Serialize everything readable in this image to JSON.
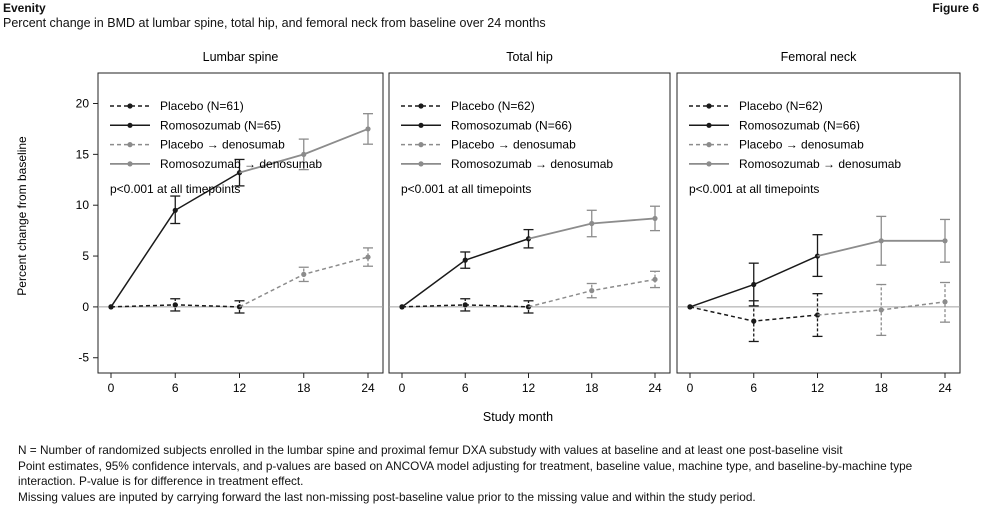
{
  "header": {
    "brand": "Evenity",
    "figure_label": "Figure 6",
    "subtitle": "Percent change in BMD at lumbar spine, total hip, and femoral neck from baseline over 24 months"
  },
  "axes": {
    "ylabel": "Percent change from baseline",
    "xlabel": "Study month"
  },
  "colors": {
    "black": "#1a1a1a",
    "gray": "#8c8c8c",
    "zero_line": "#a0a0a0"
  },
  "chart_data": [
    {
      "type": "line",
      "title": "Lumbar spine",
      "x": [
        0,
        6,
        12,
        18,
        24
      ],
      "xticks": [
        0,
        6,
        12,
        18,
        24
      ],
      "ylim": [
        -6.5,
        23
      ],
      "yticks": [
        -5,
        0,
        5,
        10,
        15,
        20
      ],
      "annotation": "p<0.001 at all timepoints",
      "legend": [
        "Placebo (N=61)",
        "Romosozumab (N=65)",
        "Placebo → denosumab",
        "Romosozumab → denosumab"
      ],
      "series": [
        {
          "name": "Placebo (N=61)",
          "style": "black-dashed",
          "points": [
            [
              0,
              0,
              0,
              0
            ],
            [
              6,
              0.2,
              -0.4,
              0.8
            ],
            [
              12,
              0,
              -0.6,
              0.6
            ]
          ]
        },
        {
          "name": "Romosozumab (N=65)",
          "style": "black-solid",
          "points": [
            [
              0,
              0,
              0,
              0
            ],
            [
              6,
              9.5,
              8.2,
              10.9
            ],
            [
              12,
              13.2,
              11.9,
              14.5
            ]
          ]
        },
        {
          "name": "Placebo → denosumab",
          "style": "gray-dashed",
          "points": [
            [
              12,
              0,
              0,
              0
            ],
            [
              18,
              3.2,
              2.5,
              3.9
            ],
            [
              24,
              4.9,
              4.0,
              5.8
            ]
          ]
        },
        {
          "name": "Romosozumab → denosumab",
          "style": "gray-solid",
          "points": [
            [
              12,
              13.2,
              13.2,
              13.2
            ],
            [
              18,
              15.0,
              13.5,
              16.5
            ],
            [
              24,
              17.5,
              16.0,
              19.0
            ]
          ]
        }
      ]
    },
    {
      "type": "line",
      "title": "Total hip",
      "x": [
        0,
        6,
        12,
        18,
        24
      ],
      "xticks": [
        0,
        6,
        12,
        18,
        24
      ],
      "ylim": [
        -6.5,
        23
      ],
      "yticks": [
        -5,
        0,
        5,
        10,
        15,
        20
      ],
      "annotation": "p<0.001 at all timepoints",
      "legend": [
        "Placebo (N=62)",
        "Romosozumab (N=66)",
        "Placebo → denosumab",
        "Romosozumab → denosumab"
      ],
      "series": [
        {
          "name": "Placebo (N=62)",
          "style": "black-dashed",
          "points": [
            [
              0,
              0,
              0,
              0
            ],
            [
              6,
              0.2,
              -0.4,
              0.8
            ],
            [
              12,
              0,
              -0.6,
              0.6
            ]
          ]
        },
        {
          "name": "Romosozumab (N=66)",
          "style": "black-solid",
          "points": [
            [
              0,
              0,
              0,
              0
            ],
            [
              6,
              4.6,
              3.8,
              5.4
            ],
            [
              12,
              6.7,
              5.8,
              7.6
            ]
          ]
        },
        {
          "name": "Placebo → denosumab",
          "style": "gray-dashed",
          "points": [
            [
              12,
              0,
              0,
              0
            ],
            [
              18,
              1.6,
              0.9,
              2.3
            ],
            [
              24,
              2.7,
              1.9,
              3.5
            ]
          ]
        },
        {
          "name": "Romosozumab → denosumab",
          "style": "gray-solid",
          "points": [
            [
              12,
              6.7,
              6.7,
              6.7
            ],
            [
              18,
              8.2,
              6.9,
              9.5
            ],
            [
              24,
              8.7,
              7.5,
              9.9
            ]
          ]
        }
      ]
    },
    {
      "type": "line",
      "title": "Femoral neck",
      "x": [
        0,
        6,
        12,
        18,
        24
      ],
      "xticks": [
        0,
        6,
        12,
        18,
        24
      ],
      "ylim": [
        -6.5,
        23
      ],
      "yticks": [
        -5,
        0,
        5,
        10,
        15,
        20
      ],
      "annotation": "p<0.001 at all timepoints",
      "legend": [
        "Placebo (N=62)",
        "Romosozumab (N=66)",
        "Placebo → denosumab",
        "Romosozumab → denosumab"
      ],
      "series": [
        {
          "name": "Placebo (N=62)",
          "style": "black-dashed",
          "points": [
            [
              0,
              0,
              0,
              0
            ],
            [
              6,
              -1.4,
              -3.4,
              0.6
            ],
            [
              12,
              -0.8,
              -2.9,
              1.3
            ]
          ]
        },
        {
          "name": "Romosozumab (N=66)",
          "style": "black-solid",
          "points": [
            [
              0,
              0,
              0,
              0
            ],
            [
              6,
              2.2,
              0.1,
              4.3
            ],
            [
              12,
              5.0,
              3.0,
              7.1
            ]
          ]
        },
        {
          "name": "Placebo → denosumab",
          "style": "gray-dashed",
          "points": [
            [
              12,
              -0.8,
              -0.8,
              -0.8
            ],
            [
              18,
              -0.3,
              -2.8,
              2.2
            ],
            [
              24,
              0.5,
              -1.5,
              2.4
            ]
          ]
        },
        {
          "name": "Romosozumab → denosumab",
          "style": "gray-solid",
          "points": [
            [
              12,
              5.0,
              5.0,
              5.0
            ],
            [
              18,
              6.5,
              4.1,
              8.9
            ],
            [
              24,
              6.5,
              4.4,
              8.6
            ]
          ]
        }
      ]
    }
  ],
  "footnotes": [
    "N = Number of randomized subjects enrolled in the lumbar spine and proximal femur DXA substudy with values at baseline and at least one post-baseline visit",
    "Point estimates, 95% confidence intervals, and p-values are based on ANCOVA model adjusting for treatment, baseline value, machine type, and baseline-by-machine type interaction. P-value is for difference in treatment effect.",
    "Missing values are inputed by carrying forward the last non-missing post-baseline value prior to the missing value and within the study period."
  ]
}
